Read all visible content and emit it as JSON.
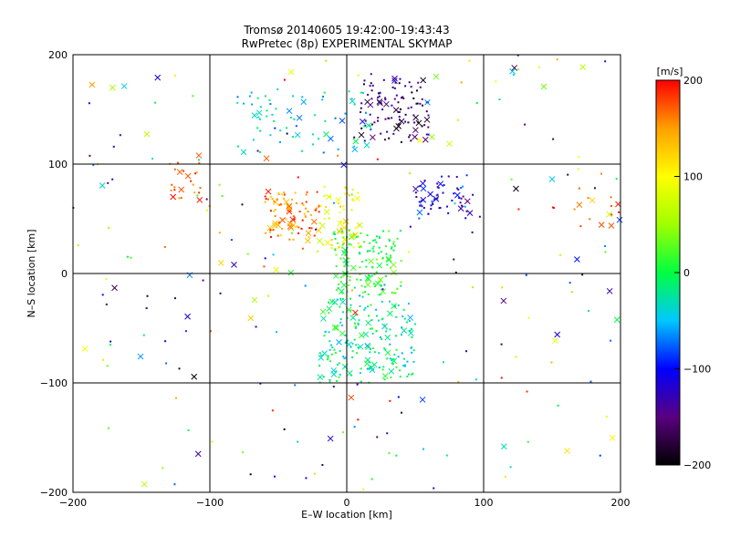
{
  "chart_data": {
    "type": "scatter",
    "title": "Tromsø 20140605 19:42:00–19:43:43",
    "subtitle": "RwPretec (8p) EXPERIMENTAL SKYMAP",
    "xlabel": "E–W location [km]",
    "ylabel": "N–S location [km]",
    "xlim": [
      -200,
      200
    ],
    "ylim": [
      -200,
      200
    ],
    "x_ticks": [
      -200,
      -100,
      0,
      100,
      200
    ],
    "y_ticks": [
      -200,
      -100,
      0,
      100,
      200
    ],
    "x_tick_labels": [
      "−200",
      "−100",
      "0",
      "100",
      "200"
    ],
    "y_tick_labels": [
      "−200",
      "−100",
      "0",
      "100",
      "200"
    ],
    "grid": true,
    "grid_lines": [
      -100,
      0,
      100
    ],
    "colorbar": {
      "unit_label": "[m/s]",
      "range": [
        -200,
        200
      ],
      "ticks": [
        200,
        100,
        0,
        -100,
        -200
      ],
      "tick_labels": [
        "200",
        "100",
        "0",
        "−100",
        "−200"
      ],
      "colors": [
        "#000000",
        "#5a0080",
        "#0000ff",
        "#00c8ff",
        "#00ff40",
        "#a0ff00",
        "#ffff00",
        "#ffa000",
        "#ff0000"
      ]
    },
    "point_markers": [
      "dot",
      "cross"
    ],
    "clusters": [
      {
        "x_range": [
          -60,
          -20
        ],
        "y_range": [
          30,
          75
        ],
        "velocity_range": [
          120,
          200
        ],
        "count": 90
      },
      {
        "x_range": [
          -20,
          10
        ],
        "y_range": [
          20,
          80
        ],
        "velocity_range": [
          60,
          140
        ],
        "count": 60
      },
      {
        "x_range": [
          -10,
          40
        ],
        "y_range": [
          -20,
          40
        ],
        "velocity_range": [
          -20,
          40
        ],
        "count": 140
      },
      {
        "x_range": [
          -20,
          50
        ],
        "y_range": [
          -100,
          -20
        ],
        "velocity_range": [
          -60,
          20
        ],
        "count": 200
      },
      {
        "x_range": [
          10,
          60
        ],
        "y_range": [
          120,
          180
        ],
        "velocity_range": [
          -200,
          -110
        ],
        "count": 110
      },
      {
        "x_range": [
          50,
          90
        ],
        "y_range": [
          50,
          90
        ],
        "velocity_range": [
          -150,
          -60
        ],
        "count": 60
      },
      {
        "x_range": [
          -80,
          20
        ],
        "y_range": [
          110,
          170
        ],
        "velocity_range": [
          -80,
          0
        ],
        "count": 70
      },
      {
        "x_range": [
          -140,
          -100
        ],
        "y_range": [
          60,
          110
        ],
        "velocity_range": [
          140,
          200
        ],
        "count": 25
      },
      {
        "x_range": [
          150,
          200
        ],
        "y_range": [
          30,
          70
        ],
        "velocity_range": [
          160,
          200
        ],
        "count": 12
      },
      {
        "x_range": [
          -200,
          200
        ],
        "y_range": [
          -200,
          200
        ],
        "velocity_range": [
          -200,
          200
        ],
        "count": 230
      }
    ]
  }
}
